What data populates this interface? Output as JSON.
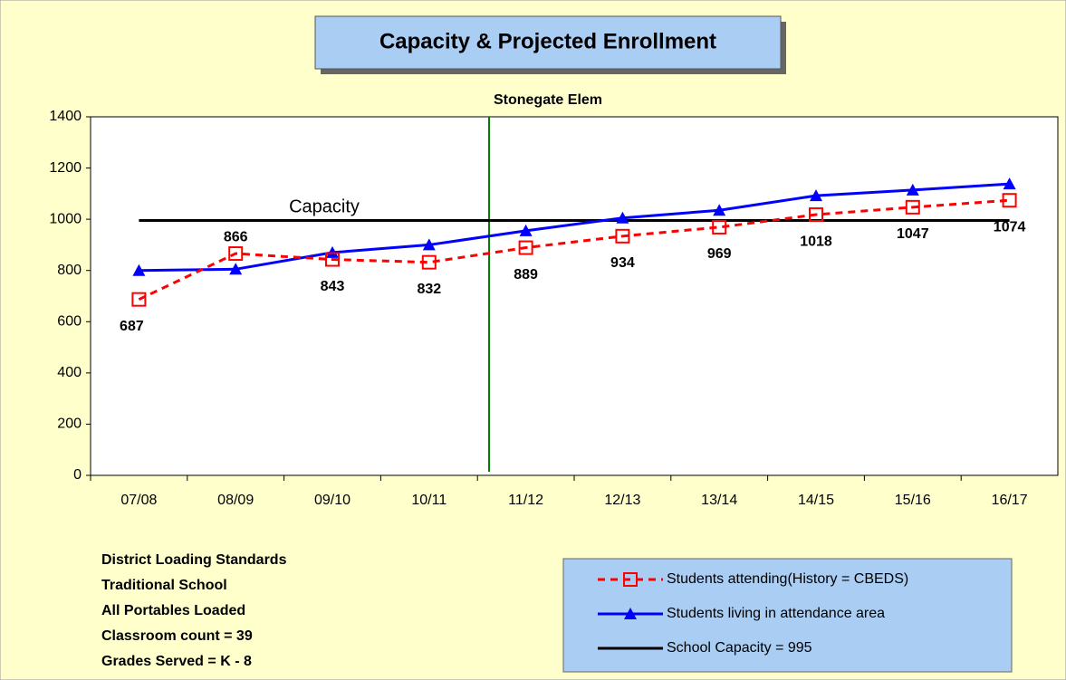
{
  "chart_data": {
    "type": "line",
    "title": "Capacity & Projected Enrollment",
    "subtitle": "Stonegate Elem",
    "annotation": "Capacity",
    "categories": [
      "07/08",
      "08/09",
      "09/10",
      "10/11",
      "11/12",
      "12/13",
      "13/14",
      "14/15",
      "15/16",
      "16/17"
    ],
    "series": [
      {
        "name": "Students attending(History = CBEDS)",
        "color": "#ff0000",
        "marker": "square",
        "dashed": true,
        "labels": true,
        "values": [
          687,
          866,
          843,
          832,
          889,
          934,
          969,
          1018,
          1047,
          1074
        ]
      },
      {
        "name": "Students living in attendance area",
        "color": "#0000ff",
        "marker": "triangle",
        "dashed": false,
        "labels": false,
        "values": [
          800,
          805,
          870,
          900,
          955,
          1005,
          1035,
          1092,
          1114,
          1138
        ]
      },
      {
        "name": "School Capacity = 995",
        "color": "#000000",
        "marker": "none",
        "dashed": false,
        "labels": false,
        "values": [
          995,
          995,
          995,
          995,
          995,
          995,
          995,
          995,
          995,
          995
        ]
      }
    ],
    "ylim": [
      0,
      1400
    ],
    "yticks": [
      0,
      200,
      400,
      600,
      800,
      1000,
      1200,
      1400
    ],
    "notes": [
      "District Loading Standards",
      "Traditional School",
      "All Portables Loaded",
      "Classroom count  = 39",
      "Grades Served = K - 8"
    ]
  }
}
